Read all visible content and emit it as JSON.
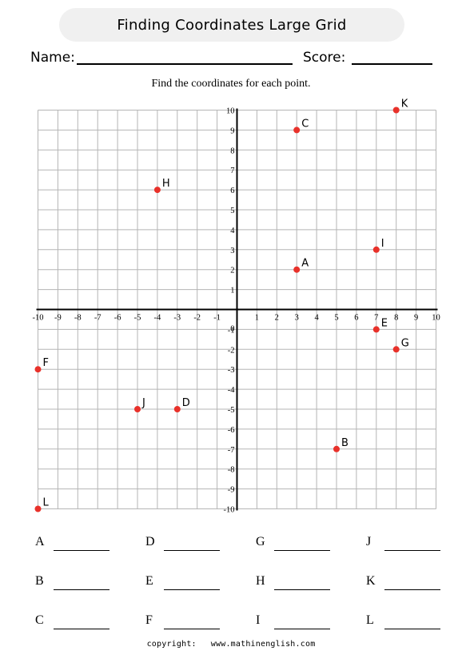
{
  "header": {
    "title": "Finding Coordinates Large Grid",
    "name_label": "Name:",
    "score_label": "Score:"
  },
  "instruction": "Find the coordinates for each point.",
  "chart_data": {
    "type": "scatter",
    "xlim": [
      -10,
      10
    ],
    "ylim": [
      -10,
      10
    ],
    "grid": true,
    "x_ticks": [
      -10,
      -9,
      -8,
      -7,
      -6,
      -5,
      -4,
      -3,
      -2,
      -1,
      1,
      2,
      3,
      4,
      5,
      6,
      7,
      8,
      9,
      10
    ],
    "y_ticks": [
      10,
      9,
      8,
      7,
      6,
      5,
      4,
      3,
      2,
      1,
      -1,
      -2,
      -3,
      -4,
      -5,
      -6,
      -7,
      -8,
      -9,
      -10
    ],
    "x_tick_labels": [
      "-10",
      "-9",
      "-8",
      "-7",
      "-6",
      "-5",
      "-4",
      "-3",
      "-2",
      "-1",
      "1",
      "2",
      "3",
      "4",
      "5",
      "6",
      "7",
      "8",
      "9",
      "10"
    ],
    "y_tick_labels": [
      "10",
      "9",
      "8",
      "7",
      "6",
      "5",
      "4",
      "3",
      "2",
      "1",
      "-1",
      "-2",
      "-3",
      "-4",
      "-5",
      "-6",
      "-7",
      "-8",
      "-9",
      "-10"
    ],
    "origin_label": "0",
    "point_color": "#e8312a",
    "points": [
      {
        "label": "A",
        "x": 3,
        "y": 2
      },
      {
        "label": "B",
        "x": 5,
        "y": -7
      },
      {
        "label": "C",
        "x": 3,
        "y": 9
      },
      {
        "label": "D",
        "x": -3,
        "y": -5
      },
      {
        "label": "E",
        "x": 7,
        "y": -1
      },
      {
        "label": "F",
        "x": -10,
        "y": -3
      },
      {
        "label": "G",
        "x": 8,
        "y": -2
      },
      {
        "label": "H",
        "x": -4,
        "y": 6
      },
      {
        "label": "I",
        "x": 7,
        "y": 3
      },
      {
        "label": "J",
        "x": -5,
        "y": -5
      },
      {
        "label": "K",
        "x": 8,
        "y": 10
      },
      {
        "label": "L",
        "x": -10,
        "y": -10
      }
    ]
  },
  "answers": [
    [
      "A",
      "D",
      "G",
      "J"
    ],
    [
      "B",
      "E",
      "H",
      "K"
    ],
    [
      "C",
      "F",
      "I",
      "L"
    ]
  ],
  "footer": {
    "copyright": "copyright:",
    "site": "www.mathinenglish.com"
  }
}
